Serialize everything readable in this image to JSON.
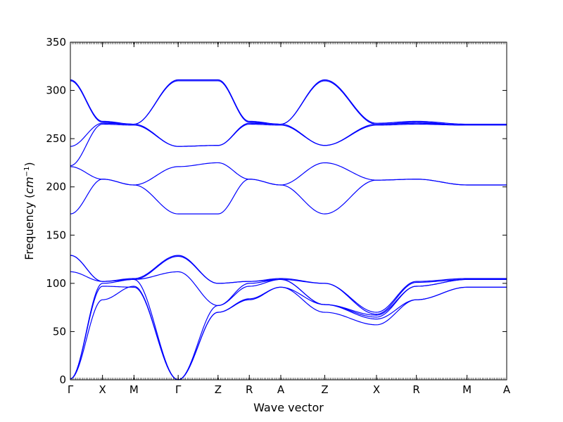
{
  "chart_data": {
    "type": "line",
    "title": "",
    "xlabel": "Wave vector",
    "ylabel_prefix": "Frequency (",
    "ylabel_unit": "cm",
    "ylabel_exp": "−1",
    "ylabel_suffix": ")",
    "ylim": [
      0,
      350
    ],
    "yticks": [
      0,
      50,
      100,
      150,
      200,
      250,
      300,
      350
    ],
    "grid": false,
    "line_color": "#0000ff",
    "kpoints": [
      {
        "label": "Γ",
        "x": 0
      },
      {
        "label": "X",
        "x": 0.745
      },
      {
        "label": "M",
        "x": 1.475
      },
      {
        "label": "Γ",
        "x": 2.5
      },
      {
        "label": "Z",
        "x": 3.425
      },
      {
        "label": "R",
        "x": 4.15
      },
      {
        "label": "A",
        "x": 4.88
      },
      {
        "label": "Z",
        "x": 5.9
      },
      {
        "label": "X",
        "x": 7.1
      },
      {
        "label": "R",
        "x": 8.025
      },
      {
        "label": "M",
        "x": 9.2
      },
      {
        "label": "A",
        "x": 10.12
      }
    ],
    "series": [
      {
        "values": [
          1,
          83,
          97,
          0,
          70,
          83,
          96,
          70,
          57,
          83,
          96,
          96
        ]
      },
      {
        "values": [
          1,
          97,
          96,
          0,
          70,
          84,
          96,
          78,
          63,
          83,
          96,
          96
        ]
      },
      {
        "values": [
          1,
          100,
          104,
          0,
          77,
          97,
          104,
          78,
          65,
          97,
          104,
          104
        ]
      },
      {
        "values": [
          112,
          102,
          104,
          112,
          77,
          100,
          104,
          78,
          67,
          97,
          104,
          104
        ]
      },
      {
        "values": [
          129,
          102,
          104,
          128,
          100,
          102,
          104,
          100,
          68,
          101,
          104,
          104
        ]
      },
      {
        "values": [
          129,
          102,
          105,
          129,
          100,
          102,
          105,
          100,
          70,
          102,
          105,
          105
        ]
      },
      {
        "values": [
          172,
          208,
          202,
          172,
          172,
          208,
          202,
          172,
          207,
          208,
          202,
          202
        ]
      },
      {
        "values": [
          221,
          208,
          202,
          221,
          225,
          208,
          202,
          225,
          207,
          208,
          202,
          202
        ]
      },
      {
        "values": [
          222,
          265,
          264,
          242,
          243,
          265,
          264,
          243,
          264,
          265,
          264,
          264
        ]
      },
      {
        "values": [
          242,
          266,
          265,
          242,
          243,
          266,
          265,
          243,
          265,
          266,
          264,
          264
        ]
      },
      {
        "values": [
          310,
          267,
          265,
          310,
          310,
          267,
          265,
          310,
          265,
          267,
          264,
          264
        ]
      },
      {
        "values": [
          311,
          268,
          265,
          311,
          311,
          268,
          265,
          311,
          266,
          268,
          265,
          265
        ]
      }
    ]
  }
}
